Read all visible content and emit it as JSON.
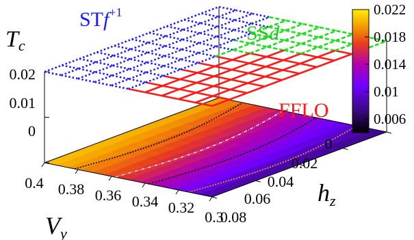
{
  "chart_data": {
    "type": "surface3d",
    "zlabel": {
      "main": "T",
      "sub": "c"
    },
    "xlabel": {
      "main": "V",
      "sub": "y"
    },
    "ylabel": {
      "main": "h",
      "sub": "z"
    },
    "x_ticks": [
      "0.4",
      "0.38",
      "0.36",
      "0.34",
      "0.32",
      "0.3"
    ],
    "y_ticks": [
      "0",
      "0.02",
      "0.04",
      "0.06",
      "0.08"
    ],
    "z_ticks": [
      "0.02",
      "0.01",
      "0"
    ],
    "x_range": [
      0.4,
      0.3
    ],
    "y_range": [
      0,
      0.08
    ],
    "z_range": [
      0,
      0.02
    ],
    "colorbar": {
      "ticks": [
        "0.022",
        "0.018",
        "0.014",
        "0.01",
        "0.006"
      ],
      "range": [
        0.004,
        0.022
      ],
      "colors": [
        "#000000",
        "#3a0a82",
        "#7000ff",
        "#b000b0",
        "#e83c1e",
        "#f5a000",
        "#ffee00"
      ]
    },
    "phases": [
      {
        "label_main": "ST",
        "label_italic": "f",
        "label_sup": "+1",
        "color": "#1a1aff",
        "line_style": "dotted"
      },
      {
        "label_main": "SS",
        "label_italic": "d",
        "label_sup": "",
        "color": "#22dd22",
        "line_style": "dashed"
      },
      {
        "label_main": "FFLO",
        "label_italic": "",
        "label_sup": "",
        "color": "#ff1a1a",
        "line_style": "solid"
      }
    ],
    "surface_Tc_base": {
      "x_ends": [
        0.4,
        0.3
      ],
      "y_ends": [
        0,
        0.08
      ],
      "Tc_corners": {
        "0.4_0": 0.0205,
        "0.3_0": 0.0075,
        "0.4_0.08": 0.0195,
        "0.3_0.08": 0.007
      }
    }
  }
}
